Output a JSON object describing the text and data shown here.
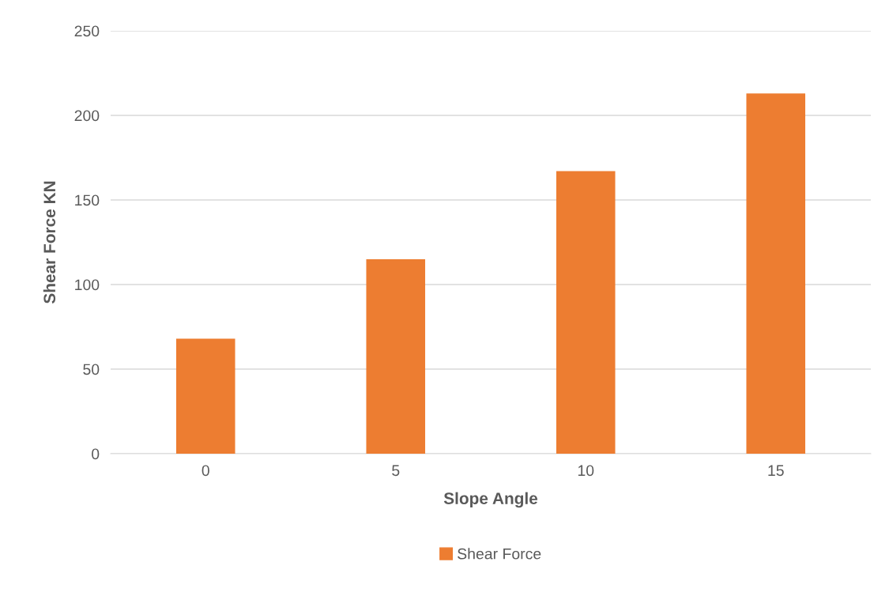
{
  "chart_data": {
    "type": "bar",
    "xlabel": "Slope Angle",
    "ylabel": "Shear Force KN",
    "categories": [
      "0",
      "5",
      "10",
      "15"
    ],
    "series": [
      {
        "name": "Shear Force",
        "color": "#ed7d31",
        "values": [
          68,
          115,
          167,
          213
        ]
      }
    ],
    "ylim": [
      0,
      250
    ],
    "yticks": [
      0,
      50,
      100,
      150,
      200,
      250
    ],
    "grid": "y",
    "legend": "bottom"
  }
}
